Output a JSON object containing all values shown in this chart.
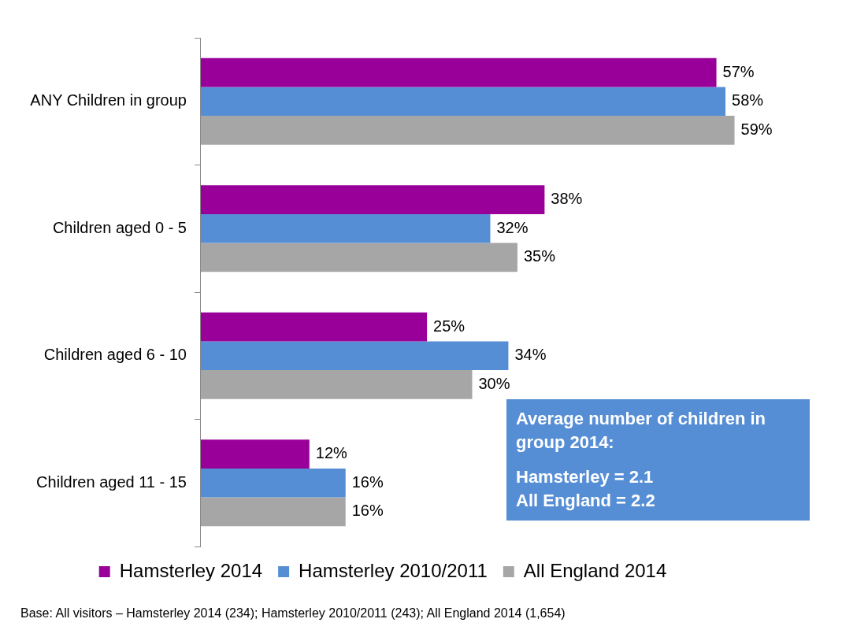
{
  "chart_data": {
    "type": "bar",
    "orientation": "horizontal",
    "categories": [
      "ANY Children in group",
      "Children aged 0 - 5",
      "Children aged 6 - 10",
      "Children aged 11 - 15"
    ],
    "series": [
      {
        "name": "Hamsterley 2014",
        "color": "#990099",
        "values": [
          57,
          38,
          25,
          12
        ],
        "value_labels": [
          "57%",
          "38%",
          "25%",
          "12%"
        ]
      },
      {
        "name": "Hamsterley 2010/2011",
        "color": "#558ed5",
        "values": [
          58,
          32,
          34,
          16
        ],
        "value_labels": [
          "58%",
          "32%",
          "34%",
          "16%"
        ]
      },
      {
        "name": "All England 2014",
        "color": "#a6a6a6",
        "values": [
          59,
          35,
          30,
          16
        ],
        "value_labels": [
          "59%",
          "35%",
          "30%",
          "16%"
        ]
      }
    ],
    "tick_labels": "y",
    "legend": "bottom",
    "annotations": [
      "Average number of children in group 2014:",
      "Hamsterley = 2.1",
      "All England = 2.2",
      "Base: All visitors – Hamsterley 2014 (234); Hamsterley 2010/2011 (243); All England 2014 (1,654)"
    ]
  }
}
